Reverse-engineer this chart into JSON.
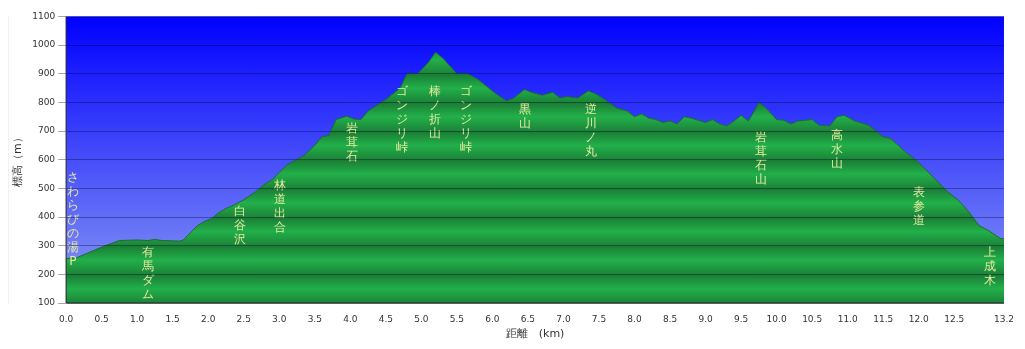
{
  "chart_data": {
    "type": "area",
    "xlabel": "距離　(km)",
    "ylabel": "標高（m）",
    "x": [
      0,
      0.15,
      0.5,
      0.75,
      1.0,
      1.15,
      1.25,
      1.35,
      1.6,
      1.65,
      1.75,
      1.85,
      1.95,
      2.05,
      2.15,
      2.25,
      2.35,
      2.5,
      2.65,
      2.8,
      2.9,
      3.0,
      3.1,
      3.2,
      3.35,
      3.5,
      3.6,
      3.7,
      3.8,
      3.95,
      4.05,
      4.15,
      4.25,
      4.5,
      4.7,
      4.8,
      4.95,
      5.1,
      5.2,
      5.3,
      5.5,
      5.65,
      5.8,
      5.9,
      6.05,
      6.2,
      6.3,
      6.45,
      6.55,
      6.7,
      6.85,
      6.95,
      7.05,
      7.2,
      7.35,
      7.45,
      7.55,
      7.75,
      7.9,
      8.0,
      8.1,
      8.2,
      8.3,
      8.4,
      8.5,
      8.6,
      8.7,
      8.8,
      9.0,
      9.1,
      9.2,
      9.3,
      9.4,
      9.5,
      9.6,
      9.7,
      9.75,
      9.85,
      10.0,
      10.1,
      10.2,
      10.3,
      10.5,
      10.6,
      10.75,
      10.85,
      10.95,
      11.1,
      11.3,
      11.5,
      11.6,
      11.8,
      12.0,
      12.2,
      12.4,
      12.55,
      12.7,
      12.85,
      13.0,
      13.15,
      13.2
    ],
    "series": [
      {
        "color": "#22b04a",
        "values": [
          255,
          258,
          295,
          318,
          320,
          318,
          322,
          318,
          316,
          320,
          345,
          370,
          385,
          395,
          415,
          430,
          440,
          460,
          485,
          515,
          530,
          555,
          580,
          595,
          615,
          650,
          680,
          685,
          740,
          752,
          742,
          740,
          770,
          810,
          850,
          900,
          900,
          940,
          975,
          955,
          900,
          900,
          880,
          860,
          830,
          805,
          815,
          845,
          835,
          825,
          835,
          815,
          820,
          815,
          840,
          830,
          815,
          780,
          770,
          750,
          760,
          745,
          740,
          730,
          735,
          725,
          750,
          745,
          730,
          740,
          725,
          718,
          735,
          755,
          735,
          775,
          800,
          780,
          740,
          738,
          725,
          735,
          740,
          720,
          718,
          750,
          755,
          735,
          720,
          680,
          675,
          630,
          590,
          540,
          490,
          460,
          420,
          370,
          350,
          325,
          325
        ]
      }
    ],
    "xlim": [
      0,
      13.2
    ],
    "ylim": [
      100,
      1100
    ],
    "xticks": [
      {
        "value": 0,
        "label": "0.0"
      },
      {
        "value": 0.5,
        "label": "0.5"
      },
      {
        "value": 1,
        "label": "1.0"
      },
      {
        "value": 1.5,
        "label": "1.5"
      },
      {
        "value": 2,
        "label": "2.0"
      },
      {
        "value": 2.5,
        "label": "2.5"
      },
      {
        "value": 3,
        "label": "3.0"
      },
      {
        "value": 3.5,
        "label": "3.5"
      },
      {
        "value": 4,
        "label": "4.0"
      },
      {
        "value": 4.5,
        "label": "4.5"
      },
      {
        "value": 5,
        "label": "5.0"
      },
      {
        "value": 5.5,
        "label": "5.5"
      },
      {
        "value": 6,
        "label": "6.0"
      },
      {
        "value": 6.5,
        "label": "6.5"
      },
      {
        "value": 7,
        "label": "7.0"
      },
      {
        "value": 7.5,
        "label": "7.5"
      },
      {
        "value": 8,
        "label": "8.0"
      },
      {
        "value": 8.5,
        "label": "8.5"
      },
      {
        "value": 9,
        "label": "9.0"
      },
      {
        "value": 9.5,
        "label": "9.5"
      },
      {
        "value": 10,
        "label": "10.0"
      },
      {
        "value": 10.5,
        "label": "10.5"
      },
      {
        "value": 11,
        "label": "11.0"
      },
      {
        "value": 11.5,
        "label": "11.5"
      },
      {
        "value": 12,
        "label": "12.0"
      },
      {
        "value": 12.5,
        "label": "12.5"
      },
      {
        "value": 13.2,
        "label": "13.2"
      }
    ],
    "yticks": [
      100,
      200,
      300,
      400,
      500,
      600,
      700,
      800,
      900,
      1000,
      1100
    ],
    "grid": "y",
    "annotations": [
      "さわらびの湯P",
      "有馬ダム",
      "白谷沢",
      "林道出合",
      "岩茸石",
      "ゴンジリ峠",
      "棒ノ折山",
      "ゴンジリ峠",
      "黒山",
      "逆川ノ丸",
      "岩茸石山",
      "高水山",
      "表参道",
      "上成木"
    ]
  }
}
